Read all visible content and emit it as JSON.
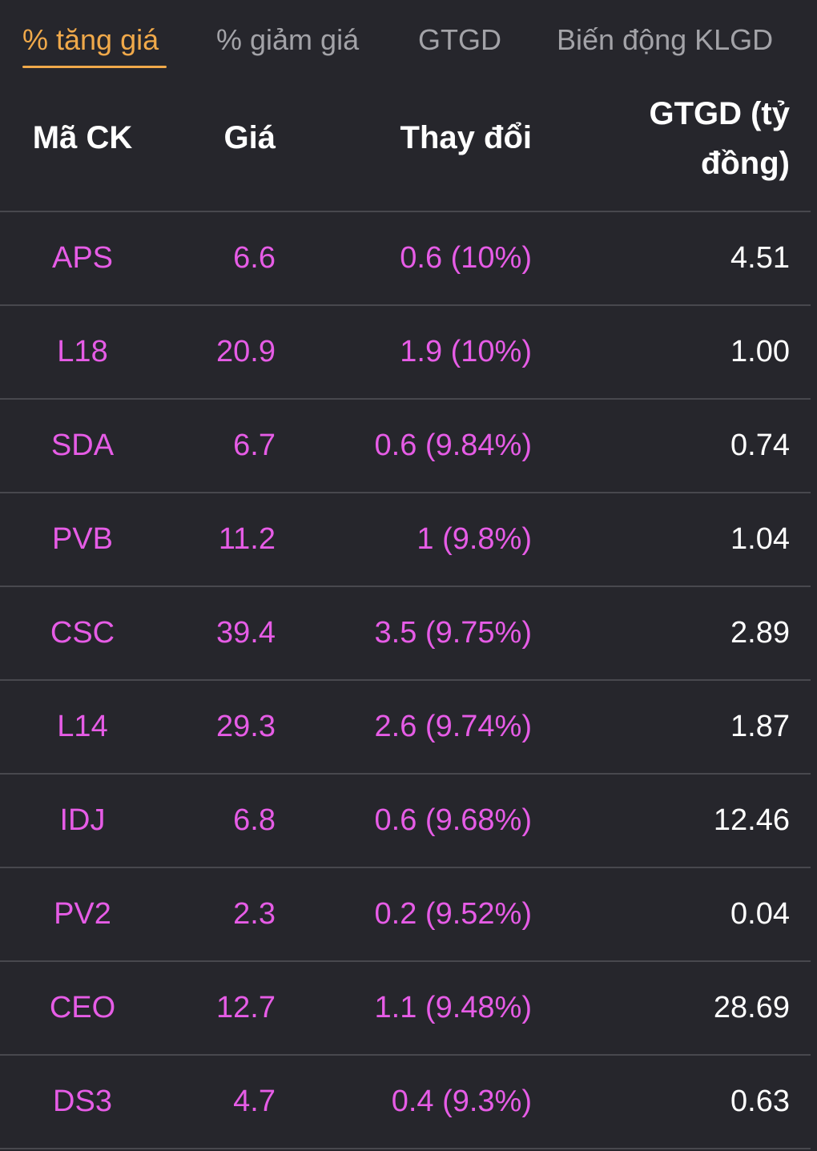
{
  "tabs": [
    {
      "label": "% tăng giá",
      "active": true
    },
    {
      "label": "% giảm giá",
      "active": false
    },
    {
      "label": "GTGD",
      "active": false
    },
    {
      "label": "Biến động KLGD",
      "active": false
    }
  ],
  "colors": {
    "background": "#26262c",
    "active_tab": "#f0a94a",
    "inactive_tab": "#a3a3a8",
    "price_up": "#e65ce6",
    "text": "#ffffff",
    "divider": "#48484e"
  },
  "table": {
    "headers": {
      "code": "Mã CK",
      "price": "Giá",
      "change": "Thay đổi",
      "value": "GTGD (tỷ đồng)"
    },
    "rows": [
      {
        "code": "APS",
        "price": "6.6",
        "change": "0.6 (10%)",
        "value": "4.51"
      },
      {
        "code": "L18",
        "price": "20.9",
        "change": "1.9 (10%)",
        "value": "1.00"
      },
      {
        "code": "SDA",
        "price": "6.7",
        "change": "0.6 (9.84%)",
        "value": "0.74"
      },
      {
        "code": "PVB",
        "price": "11.2",
        "change": "1 (9.8%)",
        "value": "1.04"
      },
      {
        "code": "CSC",
        "price": "39.4",
        "change": "3.5 (9.75%)",
        "value": "2.89"
      },
      {
        "code": "L14",
        "price": "29.3",
        "change": "2.6 (9.74%)",
        "value": "1.87"
      },
      {
        "code": "IDJ",
        "price": "6.8",
        "change": "0.6 (9.68%)",
        "value": "12.46"
      },
      {
        "code": "PV2",
        "price": "2.3",
        "change": "0.2 (9.52%)",
        "value": "0.04"
      },
      {
        "code": "CEO",
        "price": "12.7",
        "change": "1.1 (9.48%)",
        "value": "28.69"
      },
      {
        "code": "DS3",
        "price": "4.7",
        "change": "0.4 (9.3%)",
        "value": "0.63"
      }
    ]
  }
}
